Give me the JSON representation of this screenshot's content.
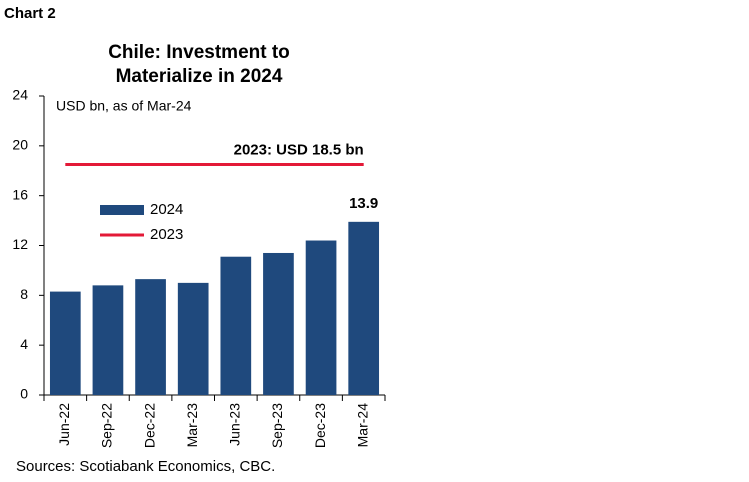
{
  "label": "Chart 2",
  "chart_data": {
    "type": "bar",
    "title": [
      "Chile: Investment to",
      "Materialize in 2024"
    ],
    "subtitle": "USD bn, as of Mar-24",
    "categories": [
      "Jun-22",
      "Sep-22",
      "Dec-22",
      "Mar-23",
      "Jun-23",
      "Sep-23",
      "Dec-23",
      "Mar-24"
    ],
    "series": [
      {
        "name": "2024",
        "type": "bar",
        "color": "#1f497d",
        "values": [
          8.3,
          8.8,
          9.3,
          9.0,
          11.1,
          11.4,
          12.4,
          13.9
        ],
        "value_labels": [
          null,
          null,
          null,
          null,
          null,
          null,
          null,
          "13.9"
        ]
      },
      {
        "name": "2023",
        "type": "line",
        "color": "#e31937",
        "values": [
          18.5,
          18.5,
          18.5,
          18.5,
          18.5,
          18.5,
          18.5,
          18.5
        ]
      }
    ],
    "annotation": "2023: USD 18.5 bn",
    "ylim": [
      0,
      24
    ],
    "yticks": [
      0,
      4,
      8,
      12,
      16,
      20,
      24
    ],
    "grid": false,
    "source": "Sources: Scotiabank Economics, CBC."
  }
}
